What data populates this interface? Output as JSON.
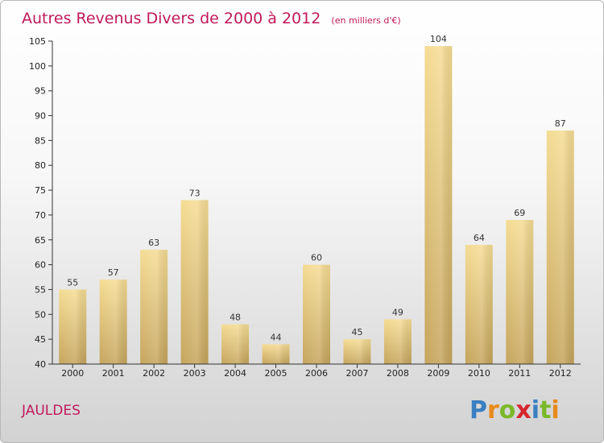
{
  "chart_data": {
    "type": "bar",
    "title": "Autres Revenus Divers de 2000 à 2012",
    "subtitle": "(en milliers d'€)",
    "categories": [
      "2000",
      "2001",
      "2002",
      "2003",
      "2004",
      "2005",
      "2006",
      "2007",
      "2008",
      "2009",
      "2010",
      "2011",
      "2012"
    ],
    "values": [
      55,
      57,
      63,
      73,
      48,
      44,
      60,
      45,
      49,
      104,
      64,
      69,
      87
    ],
    "ylim": [
      40,
      105
    ],
    "yticks": [
      40,
      45,
      50,
      55,
      60,
      65,
      70,
      75,
      80,
      85,
      90,
      95,
      100,
      105
    ],
    "xlabel": "",
    "ylabel": "",
    "grid": false,
    "bar_color": "#e5c97a",
    "title_color": "#c0195a"
  },
  "town_name": "JAULDES",
  "logo": {
    "text": "Proxiti",
    "letters": [
      "P",
      "r",
      "o",
      "x",
      "i",
      "t",
      "i"
    ],
    "colors": [
      "#3a7fc1",
      "#e88a1a",
      "#7ab829",
      "#d6262e",
      "#3a7fc1",
      "#7ab829",
      "#e88a1a"
    ]
  }
}
